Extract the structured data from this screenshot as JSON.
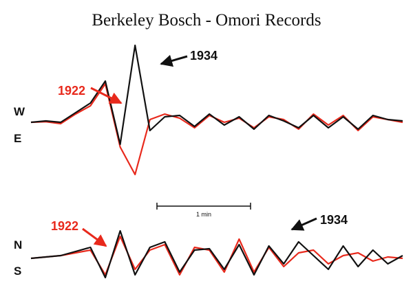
{
  "chart_data": [
    {
      "type": "line",
      "title": "Berkeley Bosch - Omori Records",
      "component_labels": [
        "W",
        "E"
      ],
      "scale_label": "1 min",
      "x": [
        0,
        0.12,
        0.24,
        0.36,
        0.48,
        0.6,
        0.72,
        0.84,
        0.96,
        1.08,
        1.2,
        1.32,
        1.44,
        1.56,
        1.68,
        1.8,
        1.92,
        2.04,
        2.16,
        2.28,
        2.4,
        2.52,
        2.64,
        2.76,
        2.88,
        3.0
      ],
      "series": [
        {
          "name": "1922",
          "color": "#e8291c",
          "values": [
            0,
            0.02,
            -0.05,
            0.3,
            0.6,
            1.4,
            -0.9,
            -1.9,
            0.1,
            0.3,
            0.15,
            -0.2,
            0.25,
            0,
            0.15,
            -0.2,
            0.2,
            0.1,
            -0.25,
            0.3,
            -0.1,
            0.25,
            -0.3,
            0.2,
            0.1,
            0
          ]
        },
        {
          "name": "1934",
          "color": "#111111",
          "values": [
            0,
            0.05,
            0,
            0.35,
            0.7,
            1.5,
            -0.8,
            2.8,
            -0.3,
            0.2,
            0.25,
            -0.15,
            0.3,
            -0.1,
            0.2,
            -0.25,
            0.25,
            0.05,
            -0.2,
            0.25,
            -0.2,
            0.2,
            -0.25,
            0.25,
            0.1,
            0.05
          ]
        }
      ]
    },
    {
      "type": "line",
      "component_labels": [
        "N",
        "S"
      ],
      "x": [
        0,
        0.12,
        0.24,
        0.36,
        0.48,
        0.6,
        0.72,
        0.84,
        0.96,
        1.08,
        1.2,
        1.32,
        1.44,
        1.56,
        1.68,
        1.8,
        1.92,
        2.04,
        2.16,
        2.28,
        2.4,
        2.52,
        2.64,
        2.76,
        2.88,
        3.0
      ],
      "series": [
        {
          "name": "1922",
          "color": "#e8291c",
          "values": [
            0,
            0.05,
            0.1,
            0.2,
            0.3,
            -0.6,
            0.8,
            -0.4,
            0.3,
            0.5,
            -0.6,
            0.4,
            0.3,
            -0.5,
            0.7,
            -0.5,
            0.4,
            -0.3,
            0.2,
            0.3,
            -0.2,
            0.1,
            0.2,
            -0.1,
            0.05,
            0
          ]
        },
        {
          "name": "1934",
          "color": "#111111",
          "values": [
            0,
            0.05,
            0.1,
            0.25,
            0.4,
            -0.7,
            1.0,
            -0.6,
            0.4,
            0.6,
            -0.5,
            0.3,
            0.35,
            -0.4,
            0.5,
            -0.6,
            0.45,
            -0.2,
            0.6,
            0.1,
            -0.4,
            0.45,
            -0.3,
            0.3,
            -0.2,
            0.1
          ]
        }
      ]
    }
  ],
  "annotations": {
    "top_1922": "1922",
    "top_1934": "1934",
    "bottom_1922": "1922",
    "bottom_1934": "1934"
  }
}
